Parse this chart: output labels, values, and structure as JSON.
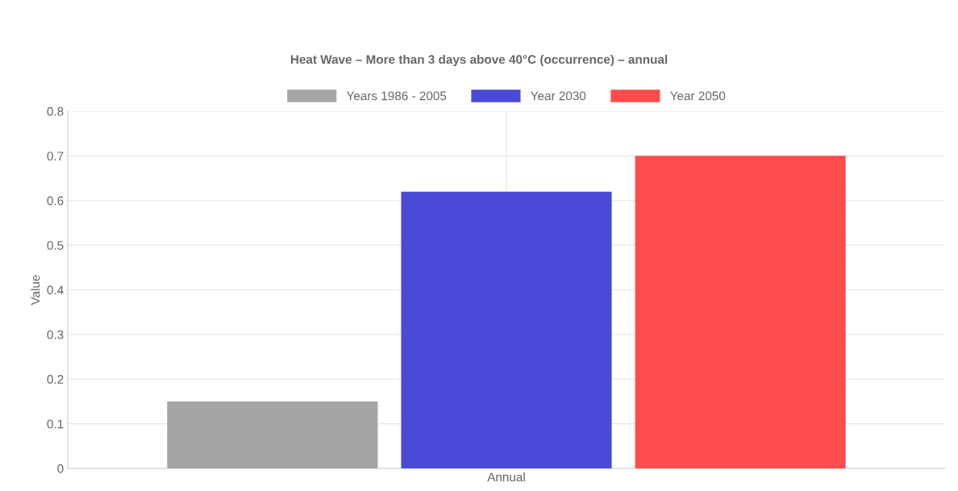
{
  "chart_data": {
    "type": "bar",
    "title": "Heat Wave – More than 3 days above 40°C (occurrence) – annual",
    "ylabel": "Value",
    "categories": [
      "Annual"
    ],
    "series": [
      {
        "name": "Years 1986 - 2005",
        "color": "#a5a5a5",
        "values": [
          0.15
        ]
      },
      {
        "name": "Year 2030",
        "color": "#4a4ad9",
        "values": [
          0.62
        ]
      },
      {
        "name": "Year 2050",
        "color": "#ff4d4d",
        "values": [
          0.7
        ]
      }
    ],
    "ylim": [
      0,
      0.8
    ],
    "yticks": [
      0,
      0.1,
      0.2,
      0.3,
      0.4,
      0.5,
      0.6,
      0.7,
      0.8
    ],
    "grid": true,
    "legend": "top"
  }
}
